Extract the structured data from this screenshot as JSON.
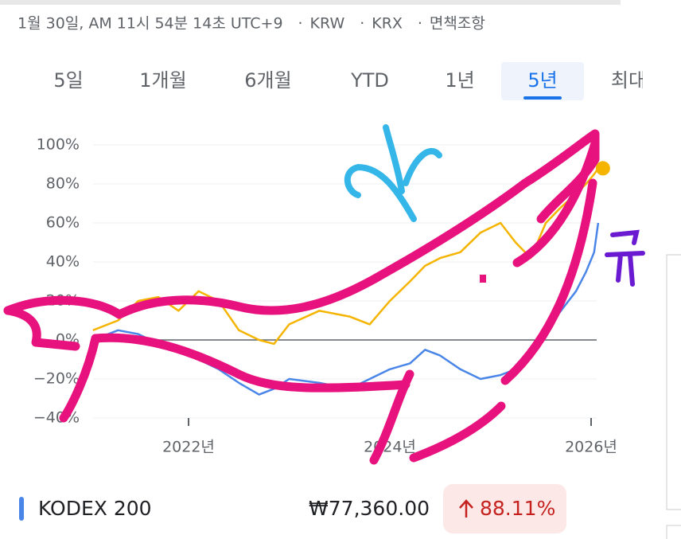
{
  "header": {
    "parts": [
      "1월 30일, AM 11시 54분 14초 UTC+9",
      "KRW",
      "KRX",
      "면책조항"
    ],
    "separator": "·"
  },
  "tabs": {
    "items": [
      "5일",
      "1개월",
      "6개월",
      "YTD",
      "1년",
      "5년",
      "최대"
    ],
    "selected": 5
  },
  "chart_data": {
    "type": "line",
    "x": [
      2021.05,
      2021.3,
      2021.5,
      2021.7,
      2021.9,
      2022.1,
      2022.3,
      2022.5,
      2022.7,
      2022.85,
      2023.0,
      2023.3,
      2023.6,
      2023.8,
      2024.0,
      2024.2,
      2024.35,
      2024.5,
      2024.7,
      2024.9,
      2025.1,
      2025.25,
      2025.4,
      2025.55,
      2025.7,
      2025.85,
      2025.95,
      2026.03,
      2026.07
    ],
    "series": [
      {
        "color": "#f4b400",
        "values": [
          5,
          10,
          20,
          22,
          15,
          25,
          20,
          5,
          0,
          -2,
          8,
          15,
          12,
          8,
          20,
          30,
          38,
          42,
          45,
          55,
          60,
          50,
          42,
          60,
          68,
          75,
          80,
          85,
          88
        ]
      },
      {
        "name": "KODEX 200",
        "color": "#4a86e8",
        "values": [
          0,
          5,
          3,
          -2,
          -5,
          -10,
          -15,
          -22,
          -28,
          -25,
          -20,
          -22,
          -25,
          -20,
          -15,
          -12,
          -5,
          -8,
          -15,
          -20,
          -18,
          -15,
          -5,
          5,
          15,
          25,
          35,
          45,
          60
        ]
      }
    ],
    "xlim": [
      2021.05,
      2026.25
    ],
    "xticks": [
      {
        "value": 2022,
        "label": "2022년"
      },
      {
        "value": 2024,
        "label": "2024년"
      },
      {
        "value": 2026,
        "label": "2026년"
      }
    ],
    "ylim": [
      -40,
      100
    ],
    "yticks": [
      {
        "value": 100,
        "label": "100%"
      },
      {
        "value": 80,
        "label": "80%"
      },
      {
        "value": 60,
        "label": "60%"
      },
      {
        "value": 40,
        "label": "40%"
      },
      {
        "value": 20,
        "label": "20%"
      },
      {
        "value": 0,
        "label": "0%"
      },
      {
        "value": -20,
        "label": "−20%"
      },
      {
        "value": -40,
        "label": "−40%"
      }
    ],
    "grid": true
  },
  "footer": {
    "price": "₩77,360.00",
    "change": "88.11%"
  }
}
